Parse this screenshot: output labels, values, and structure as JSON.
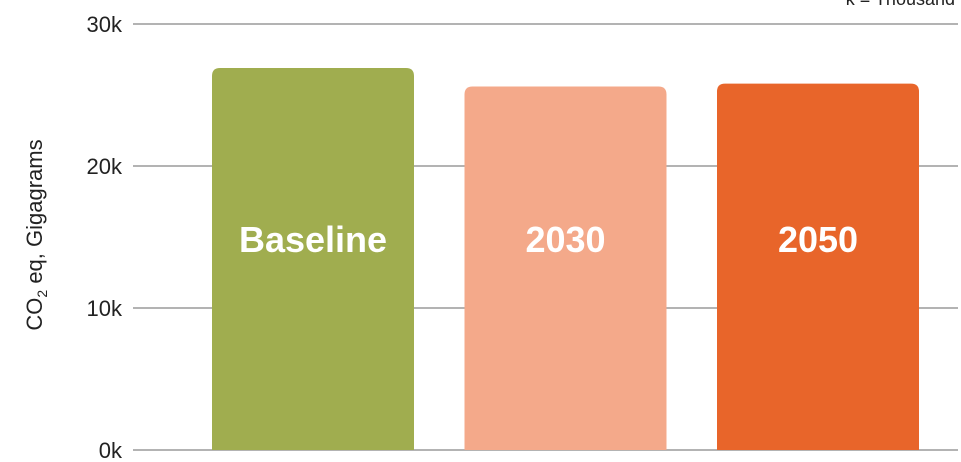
{
  "chart_data": {
    "type": "bar",
    "categories": [
      "Baseline",
      "2030",
      "2050"
    ],
    "values": [
      26900,
      25600,
      25800
    ],
    "ylabel": {
      "prefix": "CO",
      "subscript": "2",
      "suffix": " eq, Gigagrams"
    },
    "ylim": [
      0,
      30000
    ],
    "yticks": [
      {
        "value": 0,
        "label": "0k"
      },
      {
        "value": 10000,
        "label": "10k"
      },
      {
        "value": 20000,
        "label": "20k"
      },
      {
        "value": 30000,
        "label": "30k"
      }
    ],
    "grid": true,
    "legend": "none",
    "annotation": "k = Thousand",
    "colors": [
      "#a0ad4f",
      "#f4a98a",
      "#e8652a"
    ]
  }
}
